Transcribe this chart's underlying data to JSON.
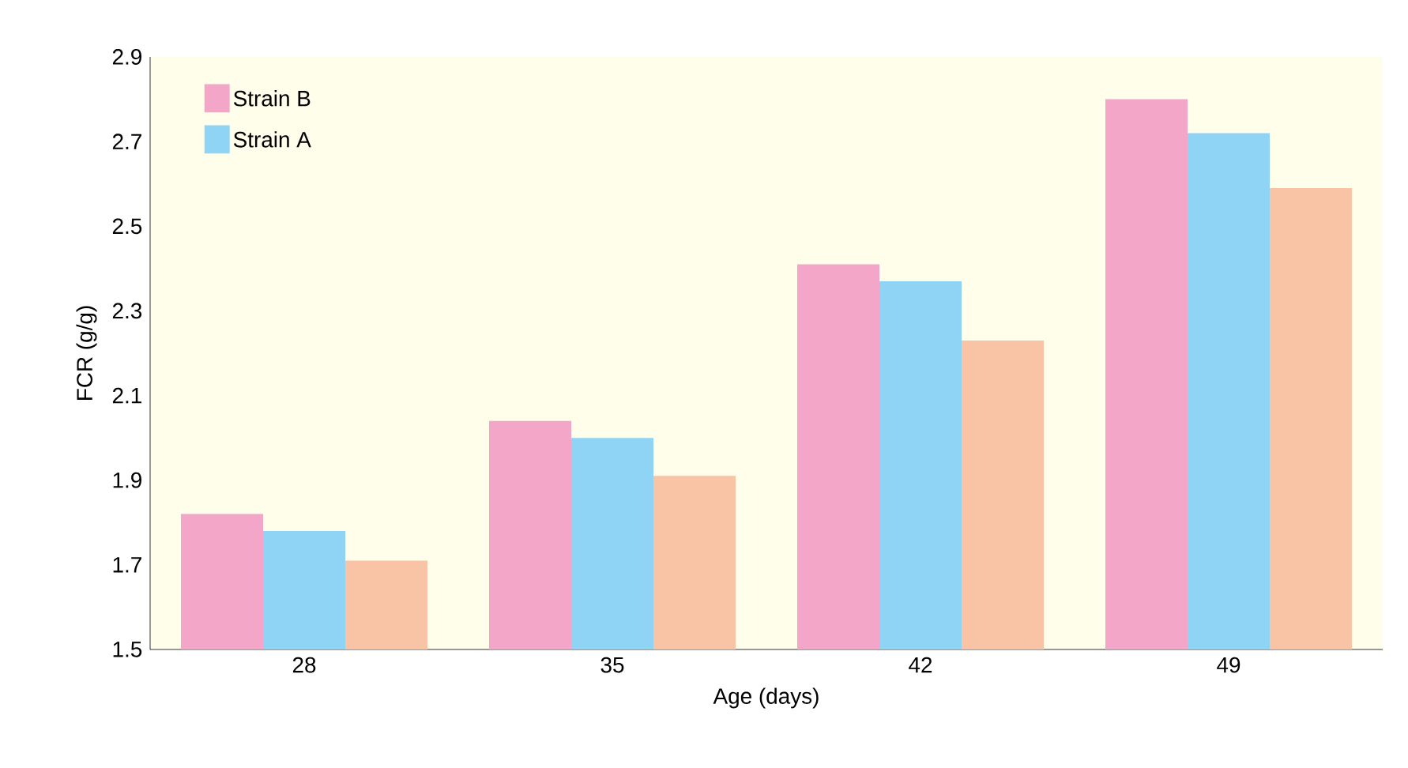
{
  "chart_data": {
    "type": "bar",
    "xlabel": "Age (days)",
    "ylabel": "FCR (g/g)",
    "categories": [
      "28",
      "35",
      "42",
      "49"
    ],
    "series": [
      {
        "name": "Strain B",
        "color": "#f4a6c8",
        "values": [
          1.82,
          2.04,
          2.41,
          2.8
        ]
      },
      {
        "name": "Strain A",
        "color": "#8fd4f4",
        "values": [
          1.78,
          2.0,
          2.37,
          2.72
        ]
      },
      {
        "color": "#f9c3a6",
        "values": [
          1.71,
          1.91,
          2.23,
          2.59
        ]
      }
    ],
    "ylim": [
      1.5,
      2.9
    ],
    "yticks": [
      1.5,
      1.7,
      1.9,
      2.1,
      2.3,
      2.5,
      2.7,
      2.9
    ],
    "grid": false,
    "legend": "top left"
  }
}
